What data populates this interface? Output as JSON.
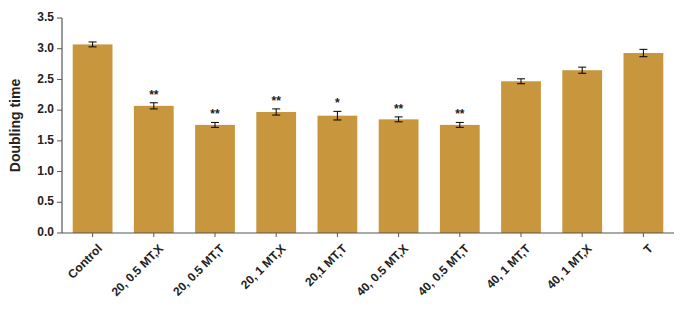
{
  "chart_data": {
    "type": "bar",
    "categories": [
      "Control",
      "20, 0.5 MT,X",
      "20, 0.5 MT,T",
      "20, 1 MT,X",
      "20,1 MT,T",
      "40, 0.5 MT,X",
      "40, 0.5 MT,T",
      "40, 1 MT,T",
      "40, 1 MT,X",
      "T"
    ],
    "values": [
      3.07,
      2.07,
      1.76,
      1.97,
      1.91,
      1.85,
      1.76,
      2.47,
      2.65,
      2.93
    ],
    "errors": [
      0.04,
      0.05,
      0.04,
      0.05,
      0.07,
      0.04,
      0.04,
      0.04,
      0.05,
      0.06
    ],
    "color": "#C8963C",
    "ylabel": "Doubling time",
    "ylim": [
      0.0,
      3.5
    ],
    "yticks": [
      {
        "value": 0.0,
        "label": "0.0"
      },
      0.5,
      {
        "value": 1.0,
        "label": "1.0"
      },
      1.5,
      {
        "value": 2.0,
        "label": "2.0"
      },
      2.5,
      {
        "value": 3.0,
        "label": "3.0"
      },
      3.5
    ],
    "annotations": [
      {
        "x": "20, 0.5 MT,X",
        "text": "**"
      },
      {
        "x": "20, 0.5 MT,T",
        "text": "**"
      },
      {
        "x": "20, 1 MT,X",
        "text": "**"
      },
      {
        "x": "20,1 MT,T",
        "text": "*"
      },
      {
        "x": "40, 0.5 MT,X",
        "text": "**"
      },
      {
        "x": "40, 0.5 MT,T",
        "text": "**"
      }
    ]
  }
}
